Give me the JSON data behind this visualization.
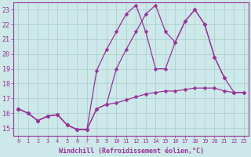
{
  "background_color": "#cce8e8",
  "grid_color": "#aacccc",
  "line_color": "#993399",
  "marker": "D",
  "markersize": 2.5,
  "linewidth": 0.9,
  "x_label": "Windchill (Refroidissement éolien,°C)",
  "x_label_fontsize": 6,
  "ytick_fontsize": 6,
  "xtick_fontsize": 5,
  "xlim": [
    -0.5,
    23.5
  ],
  "ylim": [
    14.5,
    23.5
  ],
  "yticks": [
    15,
    16,
    17,
    18,
    19,
    20,
    21,
    22,
    23
  ],
  "xticks": [
    0,
    1,
    2,
    3,
    4,
    5,
    6,
    7,
    8,
    9,
    10,
    11,
    12,
    13,
    14,
    15,
    16,
    17,
    18,
    19,
    20,
    21,
    22,
    23
  ],
  "series1_x": [
    0,
    1,
    2,
    3,
    4,
    5,
    6,
    7,
    8,
    9,
    10,
    11,
    12,
    13,
    14,
    15,
    16,
    17,
    18,
    19,
    20,
    21,
    22,
    23
  ],
  "series1_y": [
    16.3,
    16.0,
    15.5,
    15.8,
    15.9,
    15.2,
    14.9,
    14.9,
    16.3,
    16.6,
    16.7,
    16.9,
    17.1,
    17.3,
    17.4,
    17.5,
    17.5,
    17.6,
    17.7,
    17.7,
    17.7,
    17.5,
    17.4,
    17.4
  ],
  "series2_x": [
    0,
    1,
    2,
    3,
    4,
    5,
    6,
    7,
    8,
    9,
    10,
    11,
    12,
    13,
    14,
    15,
    16,
    17,
    18,
    19,
    20,
    21
  ],
  "series2_y": [
    16.3,
    16.0,
    15.5,
    15.8,
    15.9,
    15.2,
    14.9,
    14.9,
    18.9,
    20.3,
    21.5,
    22.7,
    23.3,
    21.5,
    19.0,
    19.0,
    20.8,
    22.2,
    23.0,
    22.0,
    19.8,
    18.4
  ],
  "series3_x": [
    0,
    1,
    2,
    3,
    4,
    5,
    6,
    7,
    8,
    9,
    10,
    11,
    12,
    13,
    14,
    15,
    16,
    17,
    18,
    19,
    20,
    21,
    22,
    23
  ],
  "series3_y": [
    16.3,
    16.0,
    15.5,
    15.8,
    15.9,
    15.2,
    14.9,
    14.9,
    16.3,
    16.6,
    19.0,
    20.3,
    21.5,
    22.7,
    23.3,
    21.5,
    20.8,
    22.2,
    23.0,
    22.0,
    19.8,
    18.4,
    17.4,
    17.4
  ]
}
